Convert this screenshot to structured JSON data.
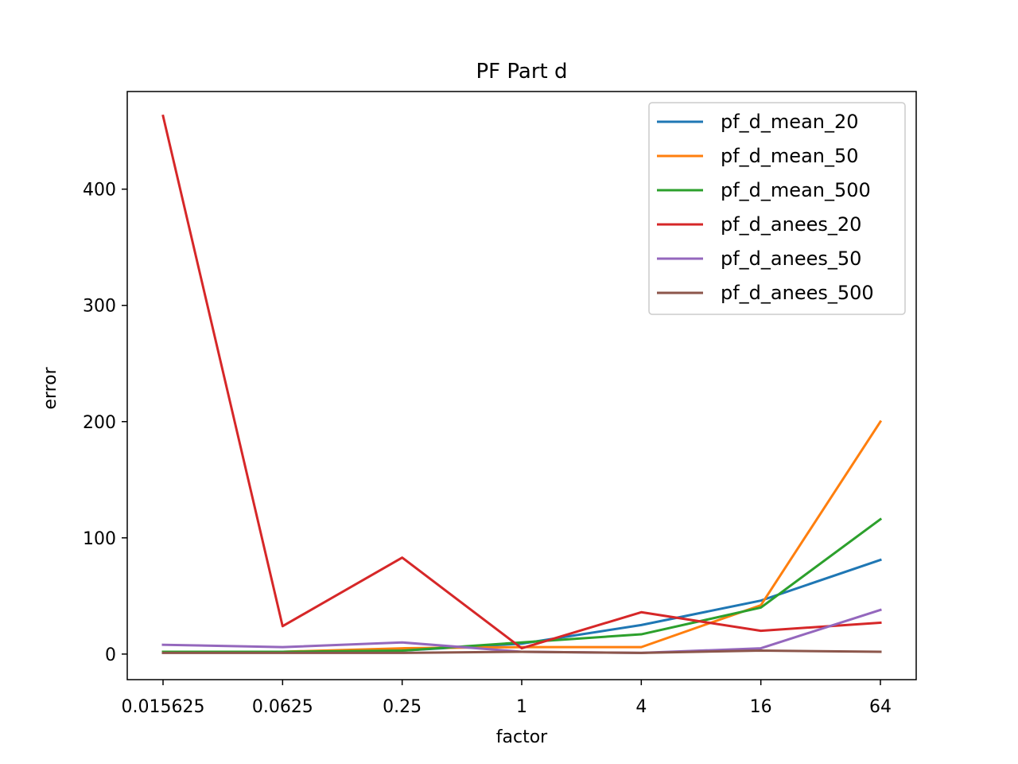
{
  "chart_data": {
    "type": "line",
    "title": "PF Part d",
    "xlabel": "factor",
    "ylabel": "error",
    "x_scale": "log",
    "x": [
      0.015625,
      0.0625,
      0.25,
      1,
      4,
      16,
      64
    ],
    "x_tick_labels": [
      "0.015625",
      "0.0625",
      "0.25",
      "1",
      "4",
      "16",
      "64"
    ],
    "ylim": [
      -22,
      484
    ],
    "y_ticks": [
      0,
      100,
      200,
      300,
      400
    ],
    "grid": false,
    "legend_position": "top-right",
    "series": [
      {
        "name": "pf_d_mean_20",
        "color": "#1f77b4",
        "values": [
          2,
          2,
          3,
          9,
          25,
          46,
          81
        ]
      },
      {
        "name": "pf_d_mean_50",
        "color": "#ff7f0e",
        "values": [
          2,
          2,
          5,
          6,
          6,
          42,
          200
        ]
      },
      {
        "name": "pf_d_mean_500",
        "color": "#2ca02c",
        "values": [
          2,
          2,
          3,
          10,
          17,
          40,
          116
        ]
      },
      {
        "name": "pf_d_anees_20",
        "color": "#d62728",
        "values": [
          463,
          24,
          83,
          5,
          36,
          20,
          27
        ]
      },
      {
        "name": "pf_d_anees_50",
        "color": "#9467bd",
        "values": [
          8,
          6,
          10,
          2,
          1,
          5,
          38
        ]
      },
      {
        "name": "pf_d_anees_500",
        "color": "#8c564b",
        "values": [
          1,
          1,
          1,
          2,
          1,
          3,
          2
        ]
      }
    ]
  }
}
